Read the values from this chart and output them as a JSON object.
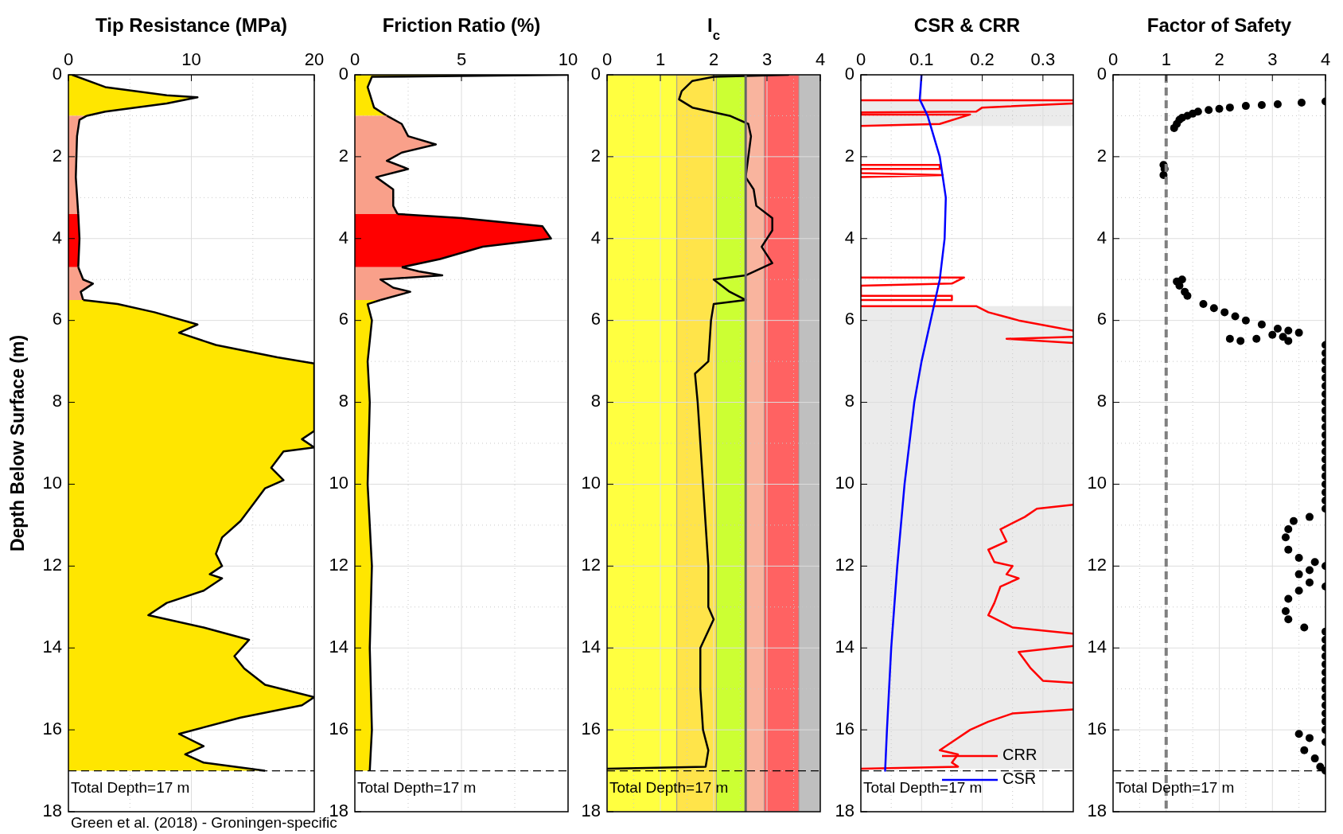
{
  "chart_data": [
    {
      "type": "area",
      "orientation": "horizontal",
      "title": "Tip Resistance (MPa)",
      "ylabel": "Depth Below Surface (m)",
      "xlim": [
        0,
        20
      ],
      "xticks": [
        0,
        10,
        20
      ],
      "ylim": [
        18,
        0
      ],
      "yticks": [
        0,
        2,
        4,
        6,
        8,
        10,
        12,
        14,
        16,
        18
      ],
      "grid": true,
      "ref_lines": [
        {
          "axis": "y",
          "value": 17,
          "label": "Total Depth=17 m",
          "line_style": "dashed",
          "color": "#000000"
        }
      ],
      "annotations": [
        "Green et al. (2018) - Groningen-specific"
      ],
      "series": [
        {
          "color": "#ffe600",
          "values": [
            0.3,
            3,
            8,
            10.5,
            8,
            3,
            1.5
          ],
          "x": [
            0,
            0.3,
            0.5,
            0.55,
            0.7,
            0.9,
            1.0
          ]
        },
        {
          "color": "#f9a08a",
          "values": [
            1.5,
            0.9,
            0.7,
            0.6,
            0.8
          ],
          "x": [
            1.0,
            1.1,
            1.5,
            2.5,
            3.4
          ]
        },
        {
          "color": "#ff0000",
          "values": [
            0.8,
            0.9,
            0.8
          ],
          "x": [
            3.4,
            4.0,
            4.7
          ]
        },
        {
          "color": "#f9a08a",
          "values": [
            0.8,
            1.2,
            2,
            1,
            1.2
          ],
          "x": [
            4.7,
            5.0,
            5.1,
            5.3,
            5.5
          ]
        },
        {
          "color": "#ffe600",
          "values": [
            1.2,
            4,
            7,
            10.5,
            9,
            12,
            17,
            20,
            20,
            19,
            20,
            17.5,
            16.5,
            17.5,
            16,
            15,
            14,
            12.5,
            12,
            12.5,
            11.5,
            12.5,
            11,
            8,
            6.5,
            11,
            14.7,
            13.5,
            14.3,
            16,
            20,
            19,
            14,
            9,
            11,
            9.5,
            11,
            16
          ],
          "x": [
            5.5,
            5.6,
            5.8,
            6.1,
            6.3,
            6.6,
            6.9,
            7.05,
            8.7,
            8.9,
            9.1,
            9.2,
            9.6,
            9.9,
            10.1,
            10.5,
            10.9,
            11.3,
            11.7,
            12.0,
            12.2,
            12.3,
            12.6,
            12.9,
            13.2,
            13.5,
            13.8,
            14.2,
            14.5,
            14.9,
            15.2,
            15.4,
            15.7,
            16.1,
            16.4,
            16.6,
            16.8,
            17.0
          ]
        }
      ]
    },
    {
      "type": "area",
      "orientation": "horizontal",
      "title": "Friction Ratio (%)",
      "xlim": [
        0,
        10
      ],
      "xticks": [
        0,
        5,
        10
      ],
      "ylim": [
        18,
        0
      ],
      "yticks": [
        0,
        2,
        4,
        6,
        8,
        10,
        12,
        14,
        16,
        18
      ],
      "grid": true,
      "ref_lines": [
        {
          "axis": "y",
          "value": 17,
          "label": "Total Depth=17 m",
          "line_style": "dashed",
          "color": "#000000"
        }
      ],
      "series": [
        {
          "color": "#ffe600",
          "values": [
            10,
            0.8,
            0.6,
            0.9,
            1.5
          ],
          "x": [
            0,
            0.05,
            0.3,
            0.8,
            1.0
          ]
        },
        {
          "color": "#f9a08a",
          "values": [
            1.5,
            2.2,
            2.5,
            3.8,
            2.2,
            1.5,
            2.5,
            1.0,
            1.8,
            1.8,
            2.0
          ],
          "x": [
            1.0,
            1.2,
            1.5,
            1.7,
            1.9,
            2.1,
            2.3,
            2.5,
            2.8,
            3.2,
            3.4
          ]
        },
        {
          "color": "#ff0000",
          "values": [
            2.0,
            5,
            8.8,
            9.2,
            6,
            4,
            2.2
          ],
          "x": [
            3.4,
            3.5,
            3.7,
            4.0,
            4.2,
            4.5,
            4.7
          ]
        },
        {
          "color": "#f9a08a",
          "values": [
            2.2,
            3,
            4.1,
            1.2,
            1.8,
            2.6,
            1.2
          ],
          "x": [
            4.7,
            4.8,
            4.9,
            5.0,
            5.2,
            5.3,
            5.5
          ]
        },
        {
          "color": "#ffe600",
          "values": [
            1.2,
            0.6,
            0.8,
            0.6,
            0.7,
            0.6,
            0.8,
            0.7,
            0.8,
            0.7
          ],
          "x": [
            5.5,
            5.6,
            6,
            7,
            8,
            10,
            12,
            14,
            16,
            17
          ]
        }
      ]
    },
    {
      "type": "line",
      "title": "I$_{c}$",
      "xlim": [
        0,
        4
      ],
      "xticks": [
        0,
        1,
        2,
        3,
        4
      ],
      "ylim": [
        18,
        0
      ],
      "yticks": [
        0,
        2,
        4,
        6,
        8,
        10,
        12,
        14,
        16,
        18
      ],
      "grid": true,
      "bands": [
        {
          "axis": "x",
          "from": 0,
          "to": 1.31,
          "color": "#ffff40"
        },
        {
          "axis": "x",
          "from": 1.31,
          "to": 2.05,
          "color": "#ffe44a"
        },
        {
          "axis": "x",
          "from": 2.05,
          "to": 2.6,
          "color": "#ccff33"
        },
        {
          "axis": "x",
          "from": 2.6,
          "to": 2.95,
          "color": "#f9b49e"
        },
        {
          "axis": "x",
          "from": 2.95,
          "to": 3.6,
          "color": "#ff6262"
        },
        {
          "axis": "x",
          "from": 3.6,
          "to": 4,
          "color": "#bfbfbf"
        }
      ],
      "ref_lines": [
        {
          "axis": "x",
          "value": 2.6,
          "color": "#666666",
          "line_style": "solid"
        },
        {
          "axis": "y",
          "value": 17,
          "label": "Total Depth=17 m",
          "line_style": "dashed",
          "color": "#000000"
        }
      ],
      "series": [
        {
          "color": "#000000",
          "x": [
            3.4,
            2.0,
            1.6,
            1.4,
            1.35,
            1.6,
            2.3,
            2.65,
            2.7,
            2.65,
            2.6,
            2.75,
            2.8,
            3.1,
            3.1,
            2.9,
            3.1,
            2.6,
            2.0,
            2.3,
            2.6,
            2.0,
            1.95,
            1.9,
            1.65,
            1.7,
            1.75,
            1.8,
            1.85,
            1.9,
            1.9,
            2.0,
            1.75,
            1.75,
            1.8,
            1.9,
            1.85,
            0
          ],
          "values": [
            0,
            0.05,
            0.15,
            0.4,
            0.6,
            0.8,
            1.0,
            1.2,
            1.5,
            2.0,
            2.5,
            2.8,
            3.2,
            3.5,
            3.8,
            4.2,
            4.6,
            4.9,
            5.0,
            5.3,
            5.5,
            5.6,
            6.0,
            7.0,
            7.3,
            8,
            9,
            10,
            11,
            12,
            13,
            13.3,
            14,
            15,
            16,
            16.5,
            16.9,
            16.95
          ]
        }
      ]
    },
    {
      "type": "line",
      "title": "CSR & CRR",
      "xlim": [
        0,
        0.35
      ],
      "xticks": [
        0,
        0.1,
        0.2,
        0.3
      ],
      "ylim": [
        18,
        0
      ],
      "yticks": [
        0,
        2,
        4,
        6,
        8,
        10,
        12,
        14,
        16,
        18
      ],
      "grid": true,
      "legend": "bottom right",
      "bands": [
        {
          "axis": "y",
          "from": 0.62,
          "to": 1.25,
          "color": "#ebebeb"
        },
        {
          "axis": "y",
          "from": 5.65,
          "to": 16.95,
          "color": "#ebebeb"
        }
      ],
      "ref_lines": [
        {
          "axis": "y",
          "value": 17,
          "label": "Total Depth=17 m",
          "line_style": "dashed",
          "color": "#000000"
        }
      ],
      "series": [
        {
          "name": "CRR",
          "color": "#ff0000",
          "x": [
            0,
            0.35,
            null,
            0.35,
            0.2,
            0.19,
            0,
            0,
            0.18,
            0.13,
            0,
            null,
            0,
            0.13,
            0.13,
            0,
            0,
            0.135,
            0,
            null,
            0,
            0.17,
            0.15,
            0,
            0,
            0.15,
            0.15,
            0,
            null,
            0,
            0.19,
            0.21,
            0.26,
            0.35,
            null,
            0.35,
            0.24,
            0.35,
            null,
            0.35,
            0.29,
            0.27,
            0.23,
            0.24,
            0.21,
            0.22,
            0.25,
            0.24,
            0.26,
            0.23,
            0.22,
            0.21,
            0.25,
            0.35,
            null,
            0.35,
            0.26,
            0.28,
            0.3,
            0.35,
            null,
            0.35,
            0.25,
            0.21,
            0.18,
            0.15,
            0.13,
            0.16,
            0.15,
            0.16,
            0
          ],
          "values": [
            0.62,
            0.62,
            null,
            0.7,
            0.8,
            0.9,
            0.92,
            0.97,
            0.97,
            1.2,
            1.25,
            null,
            2.2,
            2.2,
            2.3,
            2.3,
            2.4,
            2.45,
            2.5,
            null,
            4.95,
            4.95,
            5.1,
            5.15,
            5.4,
            5.4,
            5.5,
            5.5,
            null,
            5.65,
            5.65,
            5.8,
            6.0,
            6.25,
            null,
            6.4,
            6.45,
            6.55,
            null,
            10.5,
            10.6,
            10.8,
            11.1,
            11.4,
            11.6,
            11.9,
            12.0,
            12.2,
            12.3,
            12.5,
            12.9,
            13.2,
            13.5,
            13.65,
            null,
            13.95,
            14.1,
            14.5,
            14.8,
            14.85,
            null,
            15.5,
            15.6,
            15.8,
            16.0,
            16.3,
            16.5,
            16.6,
            16.8,
            16.9,
            16.95
          ]
        },
        {
          "name": "CSR",
          "color": "#0000ff",
          "x": [
            0.1,
            0.097,
            0.11,
            0.13,
            0.14,
            0.138,
            0.13,
            0.115,
            0.1,
            0.088,
            0.072,
            0.06,
            0.05,
            0.043,
            0.04
          ],
          "values": [
            0,
            0.6,
            1.0,
            2,
            3,
            4,
            5,
            6,
            7,
            8,
            10,
            12,
            14,
            16,
            17
          ]
        }
      ]
    },
    {
      "type": "scatter",
      "marker": "circle",
      "title": "Factor of Safety",
      "xlim": [
        0,
        4
      ],
      "xticks": [
        0,
        1,
        2,
        3,
        4
      ],
      "ylim": [
        18,
        0
      ],
      "yticks": [
        0,
        2,
        4,
        6,
        8,
        10,
        12,
        14,
        16,
        18
      ],
      "grid": true,
      "ref_lines": [
        {
          "axis": "x",
          "value": 1,
          "color": "#808080",
          "line_style": "dashed"
        },
        {
          "axis": "y",
          "value": 17,
          "label": "Total Depth=17 m",
          "line_style": "dashed",
          "color": "#000000"
        }
      ],
      "series": [
        {
          "color": "#000000",
          "x": [
            4,
            3.55,
            3.1,
            2.8,
            2.5,
            2.2,
            2.0,
            1.8,
            1.6,
            1.5,
            1.4,
            1.3,
            1.25,
            1.2,
            1.15,
            0.95,
            0.97,
            0.95,
            1.2,
            1.3,
            1.25,
            1.35,
            1.4,
            1.7,
            1.9,
            2.1,
            2.3,
            2.5,
            2.8,
            3.1,
            3.3,
            3.5,
            3.2,
            2.7,
            2.4,
            2.2,
            3.0,
            3.3,
            4,
            4,
            4,
            4,
            4,
            4,
            4,
            4,
            4,
            4,
            4,
            4,
            4,
            4,
            4,
            4,
            4,
            4,
            4,
            4,
            4,
            3.7,
            3.4,
            3.3,
            3.25,
            3.3,
            3.5,
            3.8,
            4,
            3.7,
            3.5,
            3.7,
            4,
            3.5,
            3.3,
            3.25,
            3.3,
            3.6,
            4,
            4,
            4,
            4,
            4,
            4,
            4,
            4,
            4,
            4,
            4,
            4,
            4,
            3.5,
            3.7,
            4,
            3.6,
            3.8,
            3.9,
            4
          ],
          "values": [
            0.65,
            0.68,
            0.72,
            0.74,
            0.76,
            0.8,
            0.83,
            0.86,
            0.9,
            0.95,
            1.0,
            1.05,
            1.1,
            1.2,
            1.3,
            2.2,
            2.3,
            2.45,
            5.05,
            5.0,
            5.15,
            5.3,
            5.4,
            5.6,
            5.7,
            5.8,
            5.9,
            6.0,
            6.1,
            6.2,
            6.25,
            6.3,
            6.4,
            6.45,
            6.5,
            6.45,
            6.35,
            6.5,
            6.6,
            6.8,
            7.0,
            7.2,
            7.4,
            7.6,
            7.8,
            8.0,
            8.2,
            8.4,
            8.6,
            8.8,
            9.0,
            9.2,
            9.4,
            9.6,
            9.8,
            10.0,
            10.2,
            10.4,
            10.6,
            10.8,
            10.9,
            11.1,
            11.3,
            11.6,
            11.8,
            11.9,
            12.0,
            12.1,
            12.2,
            12.4,
            12.5,
            12.6,
            12.8,
            13.1,
            13.3,
            13.5,
            13.6,
            13.8,
            14.0,
            14.2,
            14.4,
            14.6,
            14.8,
            15.0,
            15.2,
            15.4,
            15.6,
            15.8,
            16.0,
            16.1,
            16.2,
            16.3,
            16.5,
            16.7,
            16.9,
            17.0
          ]
        }
      ]
    }
  ]
}
